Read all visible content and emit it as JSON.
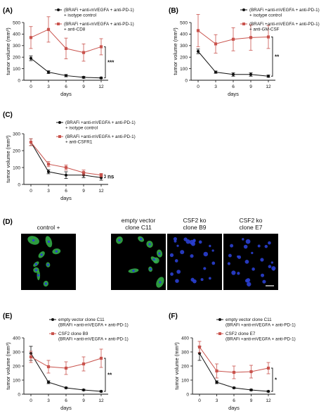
{
  "colors": {
    "black": "#111111",
    "red": "#c9534d",
    "green_cells": "#35b54a",
    "blue_nuclei": "#2a3fd1"
  },
  "chart_data": [
    {
      "panel": "(A)",
      "type": "line",
      "xlabel": "days",
      "ylabel": "tumor volume (mm³)",
      "x": [
        0,
        3,
        6,
        9,
        12
      ],
      "xticks": [
        "0",
        "3",
        "6",
        "9",
        "12"
      ],
      "yticks": [
        "0",
        "100",
        "200",
        "300",
        "400",
        "500"
      ],
      "ylim": [
        0,
        500
      ],
      "significance": "***",
      "series": [
        {
          "name": "(BRAFi +anti-mVEGFA + anti-PD-1) + isotype control",
          "color": "#111111",
          "values": [
            190,
            70,
            40,
            25,
            20
          ],
          "err": [
            20,
            12,
            10,
            8,
            6
          ]
        },
        {
          "name": "(BRAFi +anti-mVEGFA + anti-PD-1) + anti-CD8",
          "color": "#c9534d",
          "values": [
            370,
            440,
            275,
            240,
            290
          ],
          "err": [
            95,
            110,
            90,
            75,
            70
          ]
        }
      ]
    },
    {
      "panel": "(B)",
      "type": "line",
      "xlabel": "days",
      "ylabel": "tumor volume (mm³)",
      "x": [
        0,
        3,
        6,
        9,
        12
      ],
      "xticks": [
        "0",
        "3",
        "6",
        "9",
        "12"
      ],
      "yticks": [
        "0",
        "100",
        "200",
        "300",
        "400",
        "500"
      ],
      "ylim": [
        0,
        500
      ],
      "significance": "**",
      "series": [
        {
          "name": "(BRAFi +anti-mVEGFA + anti-PD-1) + isotype control",
          "color": "#111111",
          "values": [
            250,
            70,
            50,
            50,
            35
          ],
          "err": [
            20,
            10,
            15,
            15,
            10
          ]
        },
        {
          "name": "(BRAFi +anti-mVEGFA + anti-PD-1) + anti-GM-CSF",
          "color": "#c9534d",
          "values": [
            430,
            315,
            355,
            370,
            375
          ],
          "err": [
            140,
            80,
            100,
            110,
            100
          ]
        }
      ]
    },
    {
      "panel": "(C)",
      "type": "line",
      "xlabel": "days",
      "ylabel": "tumor volume (mm³)",
      "x": [
        0,
        3,
        6,
        9,
        12
      ],
      "xticks": [
        "0",
        "3",
        "6",
        "9",
        "12"
      ],
      "yticks": [
        "0",
        "100",
        "200",
        "300"
      ],
      "ylim": [
        0,
        300
      ],
      "significance": "ns",
      "series": [
        {
          "name": "(BRAFi +anti-mVEGFA + anti-PD-1) + isotype control",
          "color": "#111111",
          "values": [
            250,
            75,
            55,
            55,
            40
          ],
          "err": [
            20,
            12,
            20,
            15,
            15
          ]
        },
        {
          "name": "(BRAFi +anti-mVEGFA + anti-PD-1) + anti-CSFR1",
          "color": "#c9534d",
          "values": [
            250,
            120,
            100,
            70,
            55
          ],
          "err": [
            20,
            15,
            15,
            15,
            10
          ]
        }
      ]
    },
    {
      "panel": "(E)",
      "type": "line",
      "xlabel": "days",
      "ylabel": "tumor volume (mm³)",
      "x": [
        0,
        3,
        6,
        9,
        12
      ],
      "xticks": [
        "0",
        "3",
        "6",
        "9",
        "12"
      ],
      "yticks": [
        "0",
        "100",
        "200",
        "300",
        "400"
      ],
      "ylim": [
        0,
        400
      ],
      "significance": "**",
      "series": [
        {
          "name": "empty vector clone C11 (BRAFi +anti-mVEGFA + anti-PD-1)",
          "color": "#111111",
          "values": [
            290,
            85,
            45,
            30,
            20
          ],
          "err": [
            50,
            10,
            5,
            5,
            5
          ]
        },
        {
          "name": "CSF2 clone B9 (BRAFi +anti-mVEGFA + anti-PD-1)",
          "color": "#c9534d",
          "values": [
            265,
            195,
            185,
            215,
            255
          ],
          "err": [
            40,
            45,
            45,
            50,
            65
          ]
        }
      ]
    },
    {
      "panel": "(F)",
      "type": "line",
      "xlabel": "days",
      "ylabel": "tumor volume (mm³)",
      "x": [
        0,
        3,
        6,
        9,
        12
      ],
      "xticks": [
        "0",
        "3",
        "6",
        "9",
        "12"
      ],
      "yticks": [
        "0",
        "100",
        "200",
        "300",
        "400"
      ],
      "ylim": [
        0,
        400
      ],
      "significance": "*",
      "series": [
        {
          "name": "empty vector clone C11 (BRAFi +anti-mVEGFA + anti-PD-1)",
          "color": "#111111",
          "values": [
            290,
            85,
            45,
            30,
            20
          ],
          "err": [
            50,
            10,
            5,
            5,
            5
          ]
        },
        {
          "name": "CSF2 clone E7 (BRAFi +anti-mVEGFA + anti-PD-1)",
          "color": "#c9534d",
          "values": [
            335,
            165,
            155,
            160,
            185
          ],
          "err": [
            40,
            50,
            45,
            45,
            40
          ]
        }
      ]
    }
  ],
  "panel_d": {
    "letter": "(D)",
    "images": [
      {
        "title_lines": [
          "control +"
        ],
        "stain": "green"
      },
      {
        "title_lines": [
          "empty vector",
          "clone C11"
        ],
        "stain": "green"
      },
      {
        "title_lines": [
          "CSF2 ko",
          "clone B9"
        ],
        "stain": "blue"
      },
      {
        "title_lines": [
          "CSF2 ko",
          "clone E7"
        ],
        "stain": "blue"
      }
    ]
  }
}
